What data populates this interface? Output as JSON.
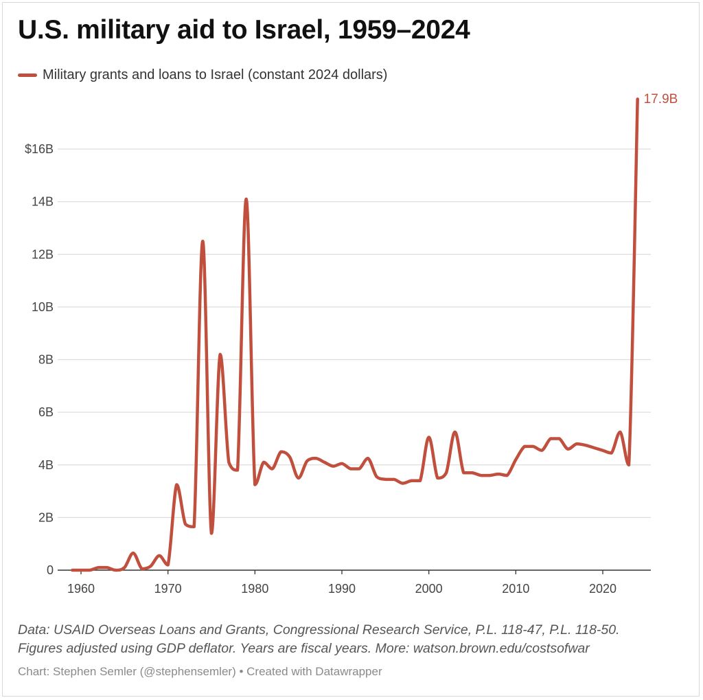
{
  "colors": {
    "series": "#c0503d",
    "grid": "#dddddd",
    "axis": "#333333",
    "annotation": "#c0503d"
  },
  "title": "U.S. military aid to Israel, 1959–2024",
  "legend_label": "Military grants and loans to Israel (constant 2024 dollars)",
  "footer": {
    "note_line1": "Data: USAID Overseas Loans and Grants, Congressional Research Service, P.L. 118-47, P.L. 118-50.",
    "note_line2": "Figures adjusted using GDP deflator. Years are fiscal years. More: watson.brown.edu/costsofwar",
    "credit_author": "Chart: Stephen Semler (@stephensemler)",
    "credit_separator": " • ",
    "credit_tool": "Created with Datawrapper"
  },
  "chart_data": {
    "type": "line",
    "title": "U.S. military aid to Israel, 1959–2024",
    "xlabel": "",
    "ylabel": "",
    "xlim": [
      1958.5,
      2025.5
    ],
    "ylim": [
      0,
      18
    ],
    "x_ticks": [
      1960,
      1970,
      1980,
      1990,
      2000,
      2010,
      2020
    ],
    "x_tick_labels": [
      "1960",
      "1970",
      "1980",
      "1990",
      "2000",
      "2010",
      "2020"
    ],
    "y_ticks": [
      0,
      2,
      4,
      6,
      8,
      10,
      12,
      14,
      16
    ],
    "y_tick_labels": [
      "0",
      "2B",
      "4B",
      "6B",
      "8B",
      "10B",
      "12B",
      "14B",
      "$16B"
    ],
    "grid": true,
    "legend_position": "top-left",
    "end_label": "17.9B",
    "series": [
      {
        "name": "Military grants and loans to Israel (constant 2024 dollars)",
        "x": [
          1959,
          1960,
          1961,
          1962,
          1963,
          1964,
          1965,
          1966,
          1967,
          1968,
          1969,
          1970,
          1971,
          1972,
          1973,
          1974,
          1975,
          1976,
          1977,
          1978,
          1979,
          1980,
          1981,
          1982,
          1983,
          1984,
          1985,
          1986,
          1987,
          1988,
          1989,
          1990,
          1991,
          1992,
          1993,
          1994,
          1995,
          1996,
          1997,
          1998,
          1999,
          2000,
          2001,
          2002,
          2003,
          2004,
          2005,
          2006,
          2007,
          2008,
          2009,
          2010,
          2011,
          2012,
          2013,
          2014,
          2015,
          2016,
          2017,
          2018,
          2019,
          2020,
          2021,
          2022,
          2023,
          2024
        ],
        "y": [
          0,
          0,
          0,
          0.1,
          0.1,
          0,
          0.1,
          0.65,
          0.05,
          0.15,
          0.55,
          0.2,
          3.25,
          1.75,
          1.65,
          12.5,
          1.4,
          8.2,
          4.1,
          3.8,
          14.1,
          3.25,
          4.1,
          3.85,
          4.5,
          4.3,
          3.5,
          4.15,
          4.25,
          4.1,
          3.95,
          4.05,
          3.85,
          3.85,
          4.25,
          3.55,
          3.45,
          3.45,
          3.3,
          3.4,
          3.4,
          5.05,
          3.5,
          3.7,
          5.25,
          3.7,
          3.7,
          3.6,
          3.6,
          3.65,
          3.6,
          4.2,
          4.7,
          4.7,
          4.55,
          5.0,
          5.0,
          4.6,
          4.8,
          4.75,
          4.65,
          4.55,
          4.45,
          5.25,
          4.0,
          17.9
        ]
      }
    ]
  }
}
